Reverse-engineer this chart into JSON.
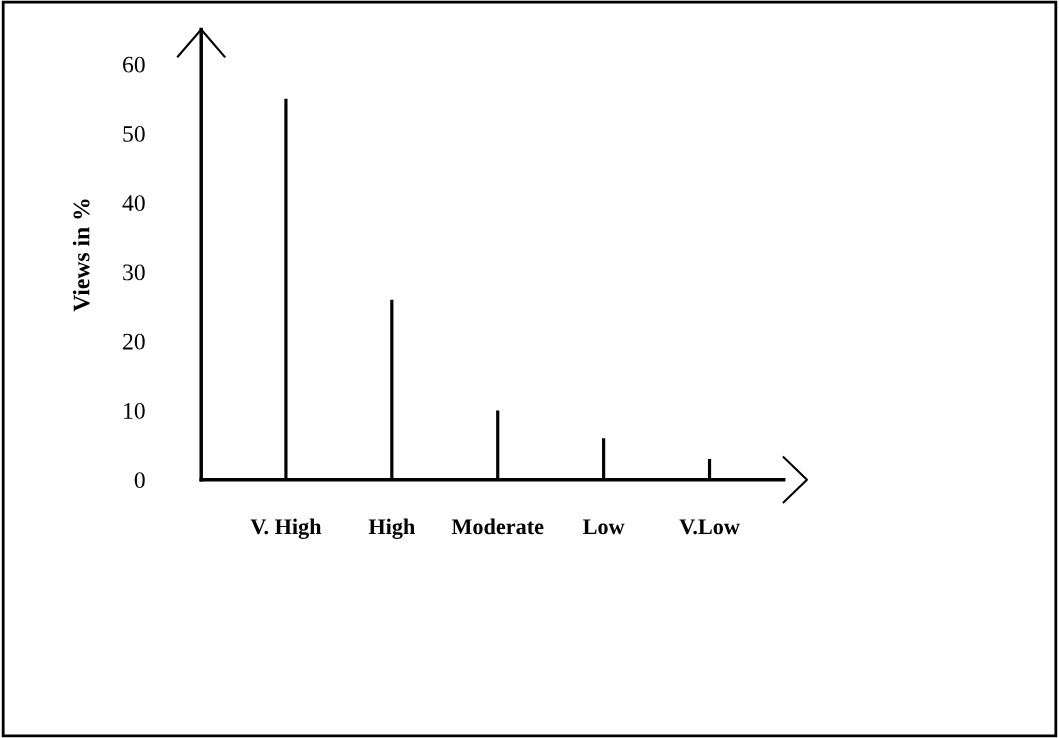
{
  "chart_data": {
    "type": "bar",
    "ylabel": "Views in %",
    "categories": [
      "V. High",
      "High",
      "Moderate",
      "Low",
      "V.Low"
    ],
    "values": [
      55,
      26,
      10,
      6,
      3
    ],
    "color": "#000000",
    "ylim": [
      0,
      65
    ],
    "yticks": [
      0,
      10,
      20,
      30,
      40,
      50,
      60
    ],
    "grid": false
  }
}
